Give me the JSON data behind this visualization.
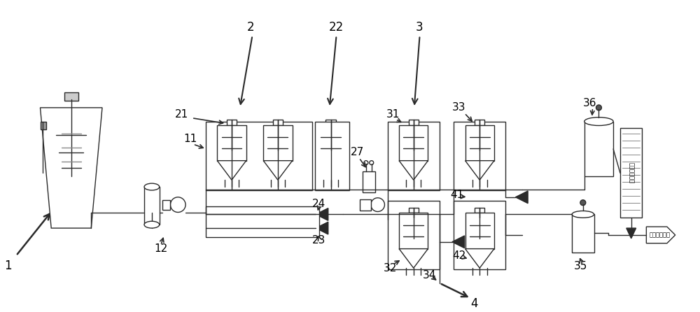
{
  "bg_color": "#ffffff",
  "lc": "#2a2a2a",
  "lw": 1.0,
  "fig_w": 10.0,
  "fig_h": 4.46,
  "dpi": 100
}
